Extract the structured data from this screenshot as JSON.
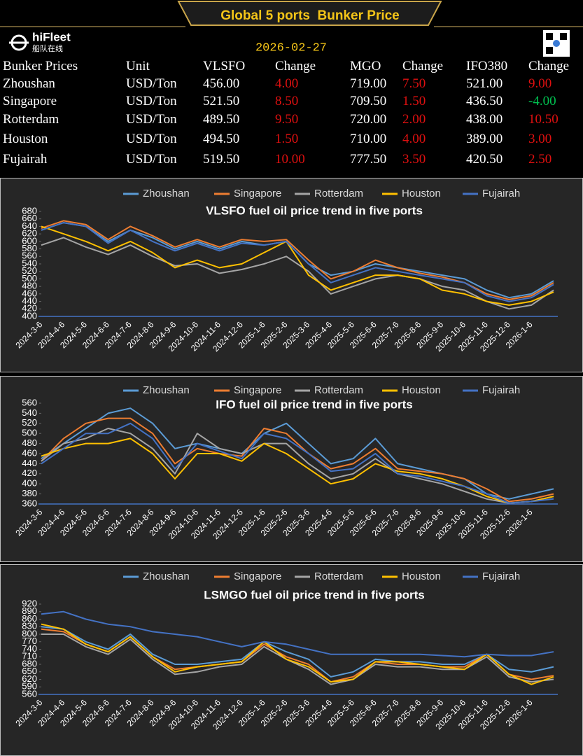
{
  "header": {
    "title": "Global 5 ports  Bunker Price",
    "brand": "hiFleet",
    "brand_cn": "船队在线",
    "date": "2026-02-27"
  },
  "table": {
    "columns": [
      "Bunker Prices",
      "Unit",
      "VLSFO",
      "Change",
      "MGO",
      "Change",
      "IFO380",
      "Change"
    ],
    "rows": [
      [
        "Zhoushan",
        "USD/Ton",
        "456.00",
        "4.00",
        "719.00",
        "7.50",
        "521.00",
        "9.00"
      ],
      [
        "Singapore",
        "USD/Ton",
        "521.50",
        "8.50",
        "709.50",
        "1.50",
        "436.50",
        "-4.00"
      ],
      [
        "Rotterdam",
        "USD/Ton",
        "489.50",
        "9.50",
        "720.00",
        "2.00",
        "438.00",
        "10.50"
      ],
      [
        "Houston",
        "USD/Ton",
        "494.50",
        "1.50",
        "710.00",
        "4.00",
        "389.00",
        "3.00"
      ],
      [
        "Fujairah",
        "USD/Ton",
        "519.50",
        "10.00",
        "777.50",
        "3.50",
        "420.50",
        "2.50"
      ]
    ]
  },
  "chart_data": [
    {
      "type": "line",
      "title": "VLSFO fuel oil price trend in five ports",
      "categories": [
        "2024-3-6",
        "2024-4-6",
        "2024-5-6",
        "2024-6-6",
        "2024-7-6",
        "2024-8-6",
        "2024-9-6",
        "2024-10-6",
        "2024-11-6",
        "2024-12-6",
        "2025-1-6",
        "2025-2-6",
        "2025-3-6",
        "2025-4-6",
        "2025-5-6",
        "2025-6-6",
        "2025-7-6",
        "2025-8-6",
        "2025-9-6",
        "2025-10-6",
        "2025-11-6",
        "2025-12-6",
        "2026-1-6",
        null
      ],
      "ylim": [
        400,
        680
      ],
      "yticks": [
        400,
        420,
        440,
        460,
        480,
        500,
        520,
        540,
        560,
        580,
        600,
        620,
        640,
        660,
        680
      ],
      "series": [
        {
          "name": "Zhoushan",
          "color": "#5b9bd5",
          "values": [
            630,
            650,
            640,
            600,
            630,
            610,
            580,
            600,
            580,
            600,
            590,
            600,
            540,
            510,
            520,
            540,
            530,
            520,
            510,
            500,
            470,
            450,
            460,
            495
          ]
        },
        {
          "name": "Singapore",
          "color": "#ed7d31",
          "values": [
            635,
            655,
            645,
            605,
            640,
            615,
            585,
            605,
            585,
            605,
            600,
            605,
            550,
            500,
            520,
            550,
            530,
            515,
            505,
            490,
            460,
            445,
            455,
            490
          ]
        },
        {
          "name": "Rotterdam",
          "color": "#a5a5a5",
          "values": [
            590,
            610,
            585,
            565,
            590,
            560,
            535,
            540,
            515,
            525,
            540,
            560,
            520,
            460,
            480,
            500,
            510,
            500,
            480,
            470,
            440,
            420,
            430,
            470
          ]
        },
        {
          "name": "Houston",
          "color": "#ffc000",
          "values": [
            640,
            620,
            600,
            575,
            600,
            570,
            530,
            550,
            530,
            540,
            570,
            600,
            510,
            470,
            490,
            510,
            510,
            500,
            470,
            460,
            440,
            430,
            440,
            465
          ]
        },
        {
          "name": "Fujairah",
          "color": "#4472c4",
          "values": [
            630,
            650,
            640,
            595,
            630,
            600,
            575,
            595,
            575,
            595,
            590,
            600,
            540,
            490,
            510,
            530,
            520,
            510,
            500,
            490,
            455,
            440,
            450,
            485
          ]
        }
      ]
    },
    {
      "type": "line",
      "title": "IFO fuel oil price trend in five ports",
      "categories": [
        "2024-3-6",
        "2024-4-6",
        "2024-5-6",
        "2024-6-6",
        "2024-7-6",
        "2024-8-6",
        "2024-9-6",
        "2024-10-6",
        "2024-11-6",
        "2024-12-6",
        "2025-1-6",
        "2025-2-6",
        "2025-3-6",
        "2025-4-6",
        "2025-5-6",
        "2025-6-6",
        "2025-7-6",
        "2025-8-6",
        "2025-9-6",
        "2025-10-6",
        "2025-11-6",
        "2025-12-6",
        "2026-1-6",
        null
      ],
      "ylim": [
        360,
        560
      ],
      "yticks": [
        360,
        380,
        400,
        420,
        440,
        460,
        480,
        500,
        520,
        540,
        560
      ],
      "series": [
        {
          "name": "Zhoushan",
          "color": "#5b9bd5",
          "values": [
            450,
            480,
            510,
            540,
            550,
            520,
            470,
            480,
            470,
            460,
            500,
            520,
            480,
            440,
            450,
            490,
            440,
            430,
            420,
            410,
            380,
            370,
            380,
            390
          ]
        },
        {
          "name": "Singapore",
          "color": "#ed7d31",
          "values": [
            445,
            490,
            520,
            530,
            530,
            500,
            440,
            470,
            460,
            455,
            510,
            500,
            460,
            430,
            440,
            470,
            430,
            425,
            420,
            410,
            390,
            365,
            370,
            380
          ]
        },
        {
          "name": "Rotterdam",
          "color": "#a5a5a5",
          "values": [
            445,
            480,
            490,
            510,
            500,
            470,
            420,
            500,
            470,
            460,
            480,
            480,
            440,
            410,
            420,
            450,
            420,
            410,
            400,
            385,
            370,
            362,
            365,
            375
          ]
        },
        {
          "name": "Houston",
          "color": "#ffc000",
          "values": [
            455,
            470,
            480,
            480,
            490,
            460,
            410,
            460,
            460,
            445,
            480,
            460,
            430,
            400,
            410,
            440,
            425,
            420,
            410,
            395,
            375,
            362,
            365,
            375
          ]
        },
        {
          "name": "Fujairah",
          "color": "#4472c4",
          "values": [
            440,
            470,
            500,
            500,
            520,
            490,
            430,
            480,
            465,
            450,
            500,
            490,
            460,
            425,
            430,
            460,
            420,
            415,
            405,
            395,
            380,
            362,
            365,
            370
          ]
        }
      ]
    },
    {
      "type": "line",
      "title": "LSMGO fuel oil price trend in five ports",
      "categories": [
        "2024-3-6",
        "2024-4-6",
        "2024-5-6",
        "2024-6-6",
        "2024-7-6",
        "2024-8-6",
        "2024-9-6",
        "2024-10-6",
        "2024-11-6",
        "2024-12-6",
        "2025-1-6",
        "2025-2-6",
        "2025-3-6",
        "2025-4-6",
        "2025-5-6",
        "2025-6-6",
        "2025-7-6",
        "2025-8-6",
        "2025-9-6",
        "2025-10-6",
        "2025-11-6",
        "2025-12-6",
        "2026-1-6",
        null
      ],
      "ylim": [
        560,
        920
      ],
      "yticks": [
        560,
        590,
        620,
        650,
        680,
        710,
        740,
        770,
        800,
        830,
        860,
        890,
        920
      ],
      "series": [
        {
          "name": "Zhoushan",
          "color": "#5b9bd5",
          "values": [
            830,
            820,
            770,
            740,
            800,
            720,
            680,
            680,
            690,
            700,
            770,
            730,
            700,
            630,
            650,
            700,
            690,
            690,
            680,
            680,
            720,
            660,
            650,
            670
          ]
        },
        {
          "name": "Singapore",
          "color": "#ed7d31",
          "values": [
            820,
            810,
            760,
            730,
            790,
            710,
            660,
            670,
            680,
            690,
            760,
            710,
            680,
            610,
            630,
            690,
            680,
            680,
            670,
            670,
            720,
            640,
            620,
            635
          ]
        },
        {
          "name": "Rotterdam",
          "color": "#a5a5a5",
          "values": [
            800,
            800,
            750,
            720,
            780,
            700,
            640,
            650,
            670,
            680,
            750,
            700,
            660,
            600,
            620,
            680,
            670,
            670,
            660,
            660,
            710,
            630,
            610,
            620
          ]
        },
        {
          "name": "Houston",
          "color": "#ffc000",
          "values": [
            840,
            820,
            760,
            730,
            790,
            710,
            650,
            670,
            680,
            690,
            770,
            700,
            670,
            610,
            620,
            690,
            690,
            680,
            670,
            660,
            720,
            640,
            600,
            630
          ]
        },
        {
          "name": "Fujairah",
          "color": "#4472c4",
          "values": [
            880,
            890,
            860,
            840,
            830,
            810,
            800,
            790,
            770,
            750,
            770,
            760,
            740,
            720,
            720,
            720,
            720,
            720,
            715,
            710,
            720,
            715,
            715,
            730
          ]
        }
      ]
    }
  ]
}
